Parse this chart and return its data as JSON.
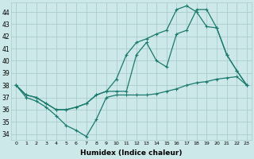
{
  "xlabel": "Humidex (Indice chaleur)",
  "ylabel": "",
  "background_color": "#cce8e8",
  "grid_color": "#aacccc",
  "line_color": "#1a7a6e",
  "xlim": [
    -0.5,
    23.5
  ],
  "ylim": [
    33.5,
    44.8
  ],
  "yticks": [
    34,
    35,
    36,
    37,
    38,
    39,
    40,
    41,
    42,
    43,
    44
  ],
  "xticks": [
    0,
    1,
    2,
    3,
    4,
    5,
    6,
    7,
    8,
    9,
    10,
    11,
    12,
    13,
    14,
    15,
    16,
    17,
    18,
    19,
    20,
    21,
    22,
    23
  ],
  "line1_x": [
    0,
    1,
    2,
    3,
    4,
    5,
    6,
    7,
    8,
    9,
    10,
    11,
    12,
    13,
    14,
    15,
    16,
    17,
    18,
    19,
    20,
    21,
    22,
    23
  ],
  "line1_y": [
    38,
    37,
    36.7,
    36.2,
    35.5,
    34.7,
    34.3,
    33.8,
    35.2,
    37.0,
    37.2,
    37.2,
    37.2,
    37.2,
    37.3,
    37.5,
    37.7,
    38.0,
    38.2,
    38.3,
    38.5,
    38.6,
    38.7,
    38.0
  ],
  "line2_x": [
    0,
    1,
    2,
    3,
    4,
    5,
    6,
    7,
    8,
    9,
    10,
    11,
    12,
    13,
    14,
    15,
    16,
    17,
    18,
    19,
    20,
    21,
    22,
    23
  ],
  "line2_y": [
    38,
    37.2,
    37.0,
    36.5,
    36.0,
    36.0,
    36.2,
    36.5,
    37.2,
    37.5,
    37.5,
    37.5,
    40.5,
    41.5,
    40.0,
    39.5,
    42.2,
    42.5,
    44.2,
    44.2,
    42.7,
    40.5,
    39.2,
    38.0
  ],
  "line3_x": [
    0,
    1,
    2,
    3,
    4,
    5,
    6,
    7,
    8,
    9,
    10,
    11,
    12,
    13,
    14,
    15,
    16,
    17,
    18,
    19,
    20,
    21,
    22,
    23
  ],
  "line3_y": [
    38,
    37.2,
    37.0,
    36.5,
    36.0,
    36.0,
    36.2,
    36.5,
    37.2,
    37.5,
    38.5,
    40.5,
    41.5,
    41.8,
    42.2,
    42.5,
    44.2,
    44.5,
    44.0,
    42.8,
    42.7,
    40.5,
    39.2,
    38.0
  ]
}
